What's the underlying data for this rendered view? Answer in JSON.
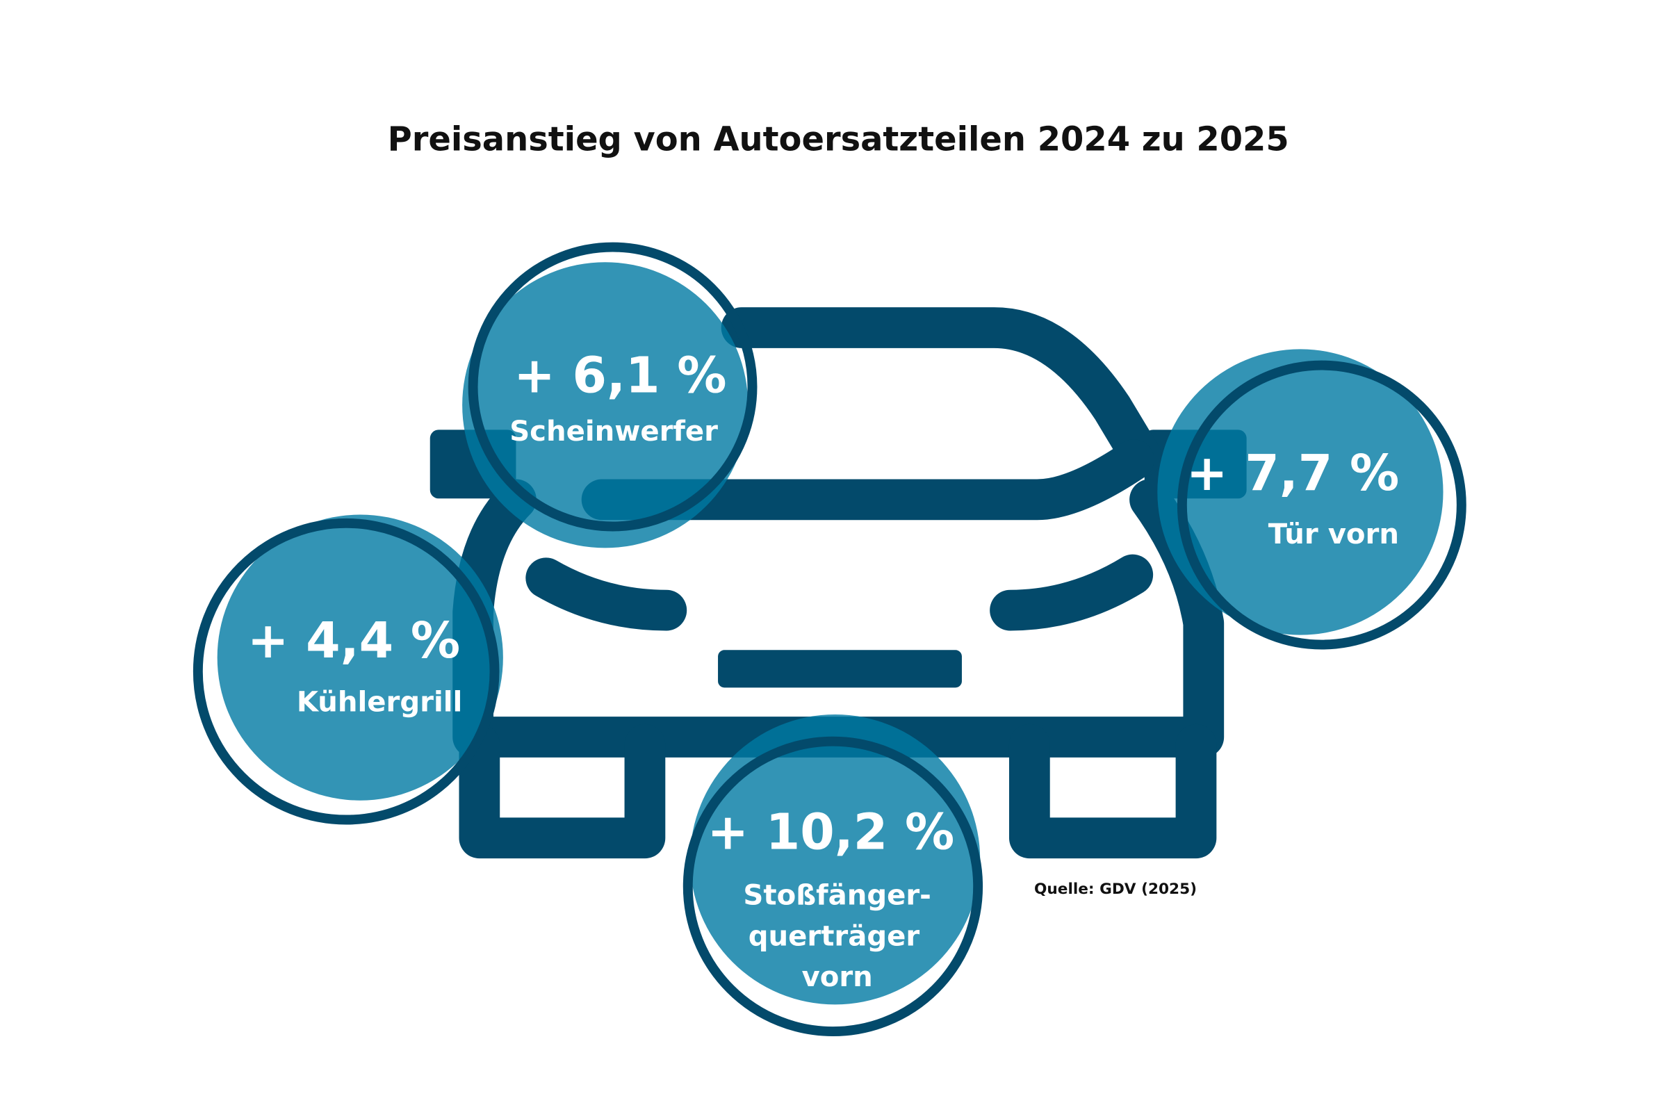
{
  "title": "Preisanstieg von Autoersatzteilen 2024 zu 2025",
  "source": "Quelle: GDV (2025)",
  "colors": {
    "car": "#034a6b",
    "bubble": "#0079a3",
    "text": "#ffffff"
  },
  "parts": [
    {
      "value": "+ 6,1 %",
      "label": [
        "Scheinwerfer"
      ]
    },
    {
      "value": "+ 4,4 %",
      "label": [
        "Kühlergrill"
      ]
    },
    {
      "value": "+ 7,7 %",
      "label": [
        "Tür vorn"
      ]
    },
    {
      "value": "+ 10,2 %",
      "label": [
        "Stoßfänger-",
        "querträger",
        "vorn"
      ]
    }
  ]
}
